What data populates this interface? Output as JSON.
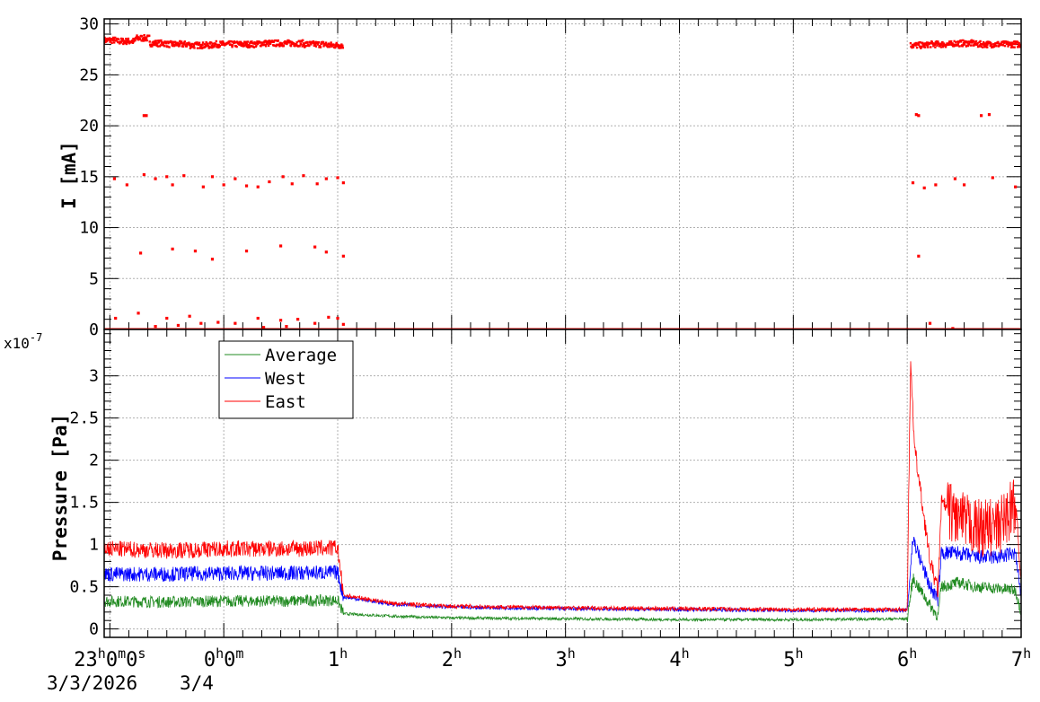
{
  "chart_data": [
    {
      "type": "scatter",
      "title": "",
      "ylabel": "I [mA]",
      "ylim": [
        0,
        30.5
      ],
      "yticks": [
        0,
        5,
        10,
        15,
        20,
        25,
        30
      ],
      "grid": true,
      "series": [
        {
          "color": "#ff0000",
          "points": [
            [
              -0.05,
              28.4
            ],
            [
              0.15,
              28.3
            ],
            [
              0.3,
              28.6
            ],
            [
              0.4,
              28.1
            ],
            [
              0.6,
              28.0
            ],
            [
              0.8,
              27.9
            ],
            [
              1.0,
              28.0
            ],
            [
              1.2,
              28.0
            ],
            [
              1.4,
              28.1
            ],
            [
              1.6,
              28.1
            ],
            [
              1.8,
              28.0
            ],
            [
              2.0,
              27.9
            ],
            [
              7.05,
              27.9
            ],
            [
              7.3,
              28.0
            ],
            [
              7.5,
              28.1
            ],
            [
              7.7,
              28.0
            ],
            [
              7.9,
              28.0
            ],
            [
              0.3,
              21.0
            ],
            [
              0.32,
              21.0
            ],
            [
              7.08,
              21.1
            ],
            [
              7.1,
              21.0
            ],
            [
              7.65,
              21.0
            ],
            [
              7.72,
              21.1
            ],
            [
              0.04,
              14.8
            ],
            [
              0.15,
              14.2
            ],
            [
              0.3,
              15.2
            ],
            [
              0.4,
              14.8
            ],
            [
              0.5,
              15.0
            ],
            [
              0.55,
              14.2
            ],
            [
              0.65,
              15.1
            ],
            [
              0.82,
              14.0
            ],
            [
              0.9,
              15.0
            ],
            [
              1.0,
              14.2
            ],
            [
              1.1,
              14.8
            ],
            [
              1.2,
              14.1
            ],
            [
              1.3,
              14.0
            ],
            [
              1.4,
              14.5
            ],
            [
              1.52,
              15.0
            ],
            [
              1.6,
              14.3
            ],
            [
              1.7,
              15.1
            ],
            [
              1.82,
              14.3
            ],
            [
              1.9,
              14.8
            ],
            [
              2.0,
              14.9
            ],
            [
              2.05,
              14.4
            ],
            [
              7.05,
              14.4
            ],
            [
              7.15,
              13.9
            ],
            [
              7.25,
              14.2
            ],
            [
              7.42,
              14.8
            ],
            [
              7.5,
              14.2
            ],
            [
              7.75,
              14.9
            ],
            [
              7.95,
              14.0
            ],
            [
              0.27,
              7.5
            ],
            [
              0.55,
              7.9
            ],
            [
              0.75,
              7.7
            ],
            [
              0.9,
              6.9
            ],
            [
              1.2,
              7.7
            ],
            [
              1.5,
              8.2
            ],
            [
              1.8,
              8.1
            ],
            [
              1.9,
              7.6
            ],
            [
              2.05,
              7.2
            ],
            [
              7.1,
              7.2
            ],
            [
              0.05,
              1.1
            ],
            [
              0.25,
              1.6
            ],
            [
              0.4,
              0.3
            ],
            [
              0.5,
              1.1
            ],
            [
              0.6,
              0.4
            ],
            [
              0.7,
              1.3
            ],
            [
              0.8,
              0.6
            ],
            [
              0.95,
              0.7
            ],
            [
              1.1,
              0.6
            ],
            [
              1.3,
              1.1
            ],
            [
              1.35,
              0.2
            ],
            [
              1.5,
              0.9
            ],
            [
              1.55,
              0.3
            ],
            [
              1.65,
              1.0
            ],
            [
              1.8,
              0.6
            ],
            [
              1.92,
              1.2
            ],
            [
              2.0,
              1.1
            ],
            [
              2.05,
              0.5
            ],
            [
              7.0,
              0.0
            ],
            [
              7.2,
              0.6
            ],
            [
              7.4,
              0.1
            ]
          ]
        }
      ]
    },
    {
      "type": "line",
      "title": "",
      "ylabel": "Pressure [Pa]",
      "y_exponent_label": "x10",
      "y_exponent_value": "-7",
      "ylim": [
        -0.1,
        3.55
      ],
      "yticks": [
        0,
        0.5,
        1,
        1.5,
        2,
        2.5,
        3
      ],
      "ytick_labels": [
        "0",
        "0.5",
        "1",
        "1.5",
        "2",
        "2.5",
        "3"
      ],
      "grid": true,
      "legend_position": "top-left",
      "series": [
        {
          "name": "Average",
          "color": "#228b22",
          "points": [
            [
              -0.05,
              0.33
            ],
            [
              0.5,
              0.32
            ],
            [
              1.0,
              0.33
            ],
            [
              1.5,
              0.33
            ],
            [
              2.0,
              0.34
            ],
            [
              2.05,
              0.18
            ],
            [
              2.5,
              0.15
            ],
            [
              3.0,
              0.13
            ],
            [
              4.0,
              0.12
            ],
            [
              5.0,
              0.11
            ],
            [
              6.0,
              0.11
            ],
            [
              7.0,
              0.12
            ],
            [
              7.05,
              0.6
            ],
            [
              7.12,
              0.45
            ],
            [
              7.2,
              0.28
            ],
            [
              7.27,
              0.15
            ],
            [
              7.3,
              0.5
            ],
            [
              7.45,
              0.55
            ],
            [
              7.6,
              0.5
            ],
            [
              7.8,
              0.48
            ],
            [
              7.95,
              0.46
            ],
            [
              8.0,
              0.2
            ]
          ],
          "noise": 0.07
        },
        {
          "name": "West",
          "color": "#0000ff",
          "points": [
            [
              -0.05,
              0.65
            ],
            [
              0.5,
              0.65
            ],
            [
              1.0,
              0.66
            ],
            [
              1.5,
              0.66
            ],
            [
              2.0,
              0.67
            ],
            [
              2.05,
              0.38
            ],
            [
              2.5,
              0.29
            ],
            [
              3.0,
              0.26
            ],
            [
              4.0,
              0.24
            ],
            [
              5.0,
              0.23
            ],
            [
              6.0,
              0.22
            ],
            [
              7.0,
              0.22
            ],
            [
              7.05,
              1.08
            ],
            [
              7.12,
              0.8
            ],
            [
              7.2,
              0.5
            ],
            [
              7.27,
              0.35
            ],
            [
              7.3,
              0.9
            ],
            [
              7.45,
              0.9
            ],
            [
              7.6,
              0.85
            ],
            [
              7.8,
              0.85
            ],
            [
              7.95,
              0.9
            ],
            [
              8.0,
              0.35
            ]
          ],
          "noise": 0.09
        },
        {
          "name": "East",
          "color": "#ff0000",
          "points": [
            [
              -0.05,
              0.95
            ],
            [
              0.5,
              0.93
            ],
            [
              1.0,
              0.95
            ],
            [
              1.5,
              0.95
            ],
            [
              2.0,
              0.96
            ],
            [
              2.05,
              0.4
            ],
            [
              2.5,
              0.3
            ],
            [
              3.0,
              0.27
            ],
            [
              4.0,
              0.25
            ],
            [
              5.0,
              0.24
            ],
            [
              6.0,
              0.23
            ],
            [
              7.0,
              0.23
            ],
            [
              7.03,
              3.25
            ],
            [
              7.06,
              2.2
            ],
            [
              7.12,
              1.6
            ],
            [
              7.2,
              0.8
            ],
            [
              7.27,
              0.45
            ],
            [
              7.3,
              1.5
            ],
            [
              7.45,
              1.3
            ],
            [
              7.6,
              1.2
            ],
            [
              7.8,
              1.2
            ],
            [
              7.95,
              1.5
            ],
            [
              8.0,
              0.55
            ]
          ],
          "noise": 0.1
        }
      ]
    }
  ],
  "x_axis": {
    "xlim": [
      -0.05,
      8.0
    ],
    "ticks": [
      {
        "x": 0,
        "base": "23",
        "sup1": "h",
        "mid": "0",
        "sup2": "m",
        "tail": "0",
        "sup3": "s"
      },
      {
        "x": 1,
        "base": "0",
        "sup1": "h",
        "mid": "0",
        "sup2": "m",
        "tail": "",
        "sup3": ""
      },
      {
        "x": 2,
        "base": "1",
        "sup1": "h"
      },
      {
        "x": 3,
        "base": "2",
        "sup1": "h"
      },
      {
        "x": 4,
        "base": "3",
        "sup1": "h"
      },
      {
        "x": 5,
        "base": "4",
        "sup1": "h"
      },
      {
        "x": 6,
        "base": "5",
        "sup1": "h"
      },
      {
        "x": 7,
        "base": "6",
        "sup1": "h"
      },
      {
        "x": 8,
        "base": "7",
        "sup1": "h"
      }
    ],
    "date_start": "3/3/2026",
    "date_next": "3/4"
  }
}
